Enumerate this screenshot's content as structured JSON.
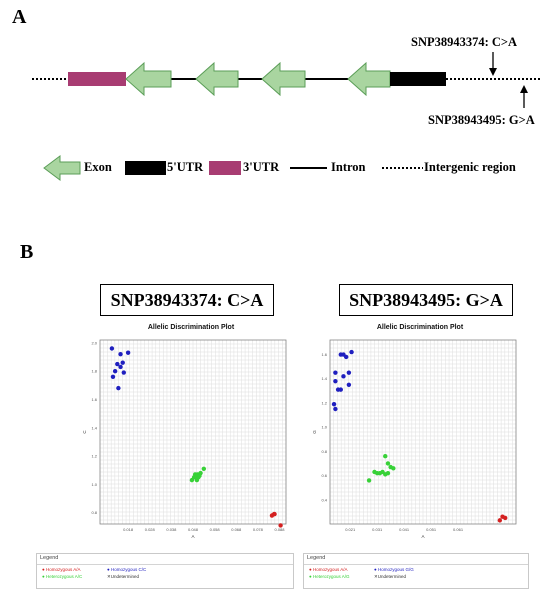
{
  "panel_a": {
    "letter": "A",
    "snp_top": "SNP38943374: C>A",
    "snp_bottom": "SNP38943495: G>A",
    "legend": {
      "exon": "Exon",
      "utr5": "5'UTR",
      "utr3": "3'UTR",
      "intron": "Intron",
      "intergenic": "Intergenic region"
    },
    "colors": {
      "exon_fill": "#a9d5a0",
      "exon_stroke": "#5a9d57",
      "utr5": "#000000",
      "utr3": "#a83c72"
    }
  },
  "panel_b": {
    "letter": "B",
    "legend": {
      "title": "Legend",
      "undetermined": "Undetermined"
    }
  },
  "chart_data": [
    {
      "type": "scatter",
      "box_title": "SNP38943374: C>A",
      "title": "Allelic Discrimination Plot",
      "xlabel": "A",
      "ylabel": "C",
      "xlim": [
        0.005,
        0.091
      ],
      "ylim": [
        0.72,
        2.02
      ],
      "x_ticks": [
        "0.018",
        "0.028",
        "0.038",
        "0.048",
        "0.058",
        "0.068",
        "0.078",
        "0.088"
      ],
      "y_ticks": [
        "0.8",
        "1.0",
        "1.2",
        "1.4",
        "1.6",
        "1.8",
        "2.0"
      ],
      "grid": true,
      "series": [
        {
          "name": "Homozygous C/C",
          "color": "#1f1fbf",
          "points": [
            [
              0.0105,
              1.96
            ],
            [
              0.011,
              1.76
            ],
            [
              0.012,
              1.8
            ],
            [
              0.013,
              1.85
            ],
            [
              0.0135,
              1.68
            ],
            [
              0.0145,
              1.92
            ],
            [
              0.0145,
              1.83
            ],
            [
              0.0155,
              1.86
            ],
            [
              0.016,
              1.79
            ],
            [
              0.018,
              1.93
            ]
          ]
        },
        {
          "name": "Homozygous A/A",
          "color": "#d42020",
          "points": [
            [
              0.0845,
              0.78
            ],
            [
              0.0855,
              0.79
            ],
            [
              0.0857,
              0.79
            ],
            [
              0.0885,
              0.71
            ]
          ]
        },
        {
          "name": "Heterozygous A/C",
          "color": "#37d137",
          "points": [
            [
              0.0475,
              1.03
            ],
            [
              0.0485,
              1.05
            ],
            [
              0.049,
              1.07
            ],
            [
              0.0495,
              1.05
            ],
            [
              0.0498,
              1.03
            ],
            [
              0.05,
              1.07
            ],
            [
              0.0505,
              1.05
            ],
            [
              0.051,
              1.06
            ],
            [
              0.0515,
              1.08
            ],
            [
              0.053,
              1.11
            ]
          ]
        }
      ],
      "legend_order": [
        "Homozygous A/A",
        "Homozygous C/C",
        "Heterozygous A/C",
        "Undetermined"
      ]
    },
    {
      "type": "scatter",
      "box_title": "SNP38943495: G>A",
      "title": "Allelic Discrimination Plot",
      "xlabel": "A",
      "ylabel": "G",
      "xlim": [
        0.0135,
        0.0825
      ],
      "ylim": [
        0.2,
        1.72
      ],
      "x_ticks": [
        "0.021",
        "0.031",
        "0.041",
        "0.051",
        "0.061"
      ],
      "y_ticks": [
        "0.4",
        "0.6",
        "0.8",
        "1.0",
        "1.2",
        "1.4",
        "1.6"
      ],
      "grid": true,
      "series": [
        {
          "name": "Homozygous G/G",
          "color": "#1f1fbf",
          "points": [
            [
              0.0175,
              1.6
            ],
            [
              0.0185,
              1.6
            ],
            [
              0.0195,
              1.58
            ],
            [
              0.0155,
              1.45
            ],
            [
              0.0155,
              1.38
            ],
            [
              0.0165,
              1.31
            ],
            [
              0.0175,
              1.31
            ],
            [
              0.0185,
              1.42
            ],
            [
              0.015,
              1.19
            ],
            [
              0.0155,
              1.15
            ],
            [
              0.0205,
              1.35
            ],
            [
              0.0205,
              1.45
            ],
            [
              0.0215,
              1.62
            ]
          ]
        },
        {
          "name": "Homozygous A/A",
          "color": "#d42020",
          "points": [
            [
              0.0765,
              0.23
            ],
            [
              0.0775,
              0.26
            ],
            [
              0.0785,
              0.25
            ]
          ]
        },
        {
          "name": "Heterozygous A/G",
          "color": "#37d137",
          "points": [
            [
              0.028,
              0.56
            ],
            [
              0.03,
              0.63
            ],
            [
              0.031,
              0.62
            ],
            [
              0.032,
              0.62
            ],
            [
              0.033,
              0.63
            ],
            [
              0.034,
              0.61
            ],
            [
              0.035,
              0.62
            ],
            [
              0.036,
              0.67
            ],
            [
              0.037,
              0.66
            ],
            [
              0.035,
              0.7
            ],
            [
              0.034,
              0.76
            ]
          ]
        }
      ],
      "legend_order": [
        "Homozygous A/A",
        "Homozygous G/G",
        "Heterozygous A/G",
        "Undetermined"
      ]
    }
  ]
}
